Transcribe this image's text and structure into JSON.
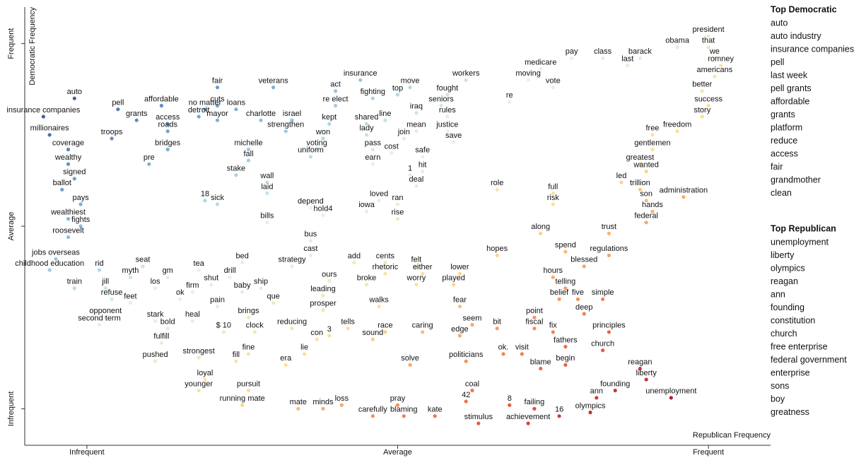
{
  "chart_data": {
    "type": "scatter",
    "xlabel": "Republican Frequency",
    "ylabel": "Democratic Frequency",
    "xlim": [
      -0.1,
      1.1
    ],
    "ylim": [
      -0.1,
      1.1
    ],
    "xticks": [
      {
        "value": 0,
        "label": "Infrequent"
      },
      {
        "value": 0.5,
        "label": "Average"
      },
      {
        "value": 1,
        "label": "Frequent"
      }
    ],
    "yticks": [
      {
        "value": 0,
        "label": "Infrequent"
      },
      {
        "value": 0.5,
        "label": "Average"
      },
      {
        "value": 1,
        "label": "Frequent"
      }
    ],
    "color_scale": [
      "#a50026",
      "#f46d43",
      "#fee090",
      "#e0f3f8",
      "#74add1",
      "#313695"
    ],
    "labels": [
      "auto",
      "insurance companies",
      "pell",
      "grants",
      "access",
      "affordable",
      "fair",
      "cuts",
      "veterans",
      "charlotte",
      "israel",
      "no matter",
      "detroit",
      "loans",
      "mayor",
      "roads",
      "millionaires",
      "troops",
      "coverage",
      "bridges",
      "pre",
      "wealthy",
      "michelle",
      "strengthen",
      "fall",
      "stake",
      "wall",
      "laid",
      "signed",
      "ballot",
      "pays",
      "wealthiest",
      "fights",
      "roosevelt",
      "18",
      "sick",
      "bills",
      "act",
      "insurance",
      "re elect",
      "fighting",
      "top",
      "move",
      "workers",
      "seniors",
      "fought",
      "kept",
      "won",
      "shared",
      "lady",
      "line",
      "iraq",
      "rules",
      "mean",
      "join",
      "justice",
      "save",
      "voting",
      "uniform",
      "pass",
      "earn",
      "cost",
      "safe",
      "1",
      "hit",
      "deal",
      "depend",
      "hold4",
      "loved",
      "iowa",
      "ran",
      "rise",
      "role",
      "moving",
      "re",
      "medicare",
      "vote",
      "pay",
      "class",
      "barack",
      "last",
      "obama",
      "president",
      "that",
      "we",
      "romney",
      "americans",
      "better",
      "success",
      "story",
      "freedom",
      "free",
      "gentlemen",
      "greatest",
      "wanted",
      "led",
      "trillion",
      "son",
      "administration",
      "hands",
      "federal",
      "full",
      "risk",
      "trust",
      "along",
      "spend",
      "regulations",
      "blessed",
      "hopes",
      "jobs overseas",
      "childhood education",
      "rid",
      "seat",
      "myth",
      "gm",
      "tea",
      "bed",
      "drill",
      "strategy",
      "cast",
      "bus",
      "add",
      "cents",
      "felt",
      "either",
      "lower",
      "rhetoric",
      "ours",
      "worry",
      "played",
      "broke",
      "hours",
      "telling",
      "train",
      "jill",
      "refuse",
      "los",
      "shut",
      "ship",
      "baby",
      "leading",
      "ok",
      "firm",
      "feet",
      "que",
      "belief",
      "five",
      "simple",
      "pain",
      "walks",
      "prosper",
      "fear",
      "point",
      "deep",
      "opponent",
      "second term",
      "stark",
      "brings",
      "bold",
      "heal",
      "reducing",
      "seem",
      "fiscal",
      "principles",
      "clock",
      "$ 10",
      "tells",
      "race",
      "caring",
      "edge",
      "bit",
      "fix",
      "con",
      "3",
      "fulfill",
      "sound",
      "ok.",
      "visit",
      "fathers",
      "church",
      "pushed",
      "strongest",
      "fine",
      "lie",
      "fill",
      "era",
      "solve",
      "politicians",
      "blame",
      "begin",
      "reagan",
      "liberty",
      "loyal",
      "younger",
      "pursuit",
      "founding",
      "unemployment",
      "running mate",
      "mate",
      "minds",
      "loss",
      "coal",
      "42",
      "8",
      "ann",
      "pray",
      "failing",
      "olympics",
      "16",
      "carefully",
      "blaming",
      "kate",
      "achievement",
      "stimulus"
    ],
    "x": [
      -0.02,
      -0.07,
      0.05,
      0.08,
      0.13,
      0.12,
      0.21,
      0.21,
      0.3,
      0.28,
      0.33,
      0.19,
      0.18,
      0.24,
      0.21,
      0.13,
      -0.06,
      0.04,
      -0.03,
      0.13,
      0.1,
      -0.03,
      0.26,
      0.32,
      0.26,
      0.24,
      0.29,
      0.29,
      -0.02,
      -0.04,
      -0.01,
      -0.03,
      -0.01,
      -0.03,
      0.19,
      0.21,
      0.29,
      0.4,
      0.44,
      0.4,
      0.46,
      0.5,
      0.52,
      0.61,
      0.57,
      0.58,
      0.39,
      0.38,
      0.45,
      0.45,
      0.48,
      0.53,
      0.58,
      0.53,
      0.51,
      0.58,
      0.59,
      0.37,
      0.36,
      0.46,
      0.46,
      0.49,
      0.54,
      0.52,
      0.54,
      0.53,
      0.36,
      0.38,
      0.47,
      0.45,
      0.5,
      0.5,
      0.66,
      0.71,
      0.68,
      0.73,
      0.75,
      0.78,
      0.83,
      0.89,
      0.87,
      0.95,
      1.0,
      1.0,
      1.01,
      1.02,
      1.01,
      0.99,
      1.0,
      0.99,
      0.95,
      0.91,
      0.91,
      0.89,
      0.9,
      0.86,
      0.89,
      0.9,
      0.96,
      0.91,
      0.9,
      0.75,
      0.75,
      0.84,
      0.73,
      0.77,
      0.84,
      0.8,
      0.66,
      -0.05,
      -0.06,
      0.02,
      0.09,
      0.07,
      0.13,
      0.18,
      0.25,
      0.23,
      0.33,
      0.36,
      0.36,
      0.43,
      0.48,
      0.53,
      0.54,
      0.6,
      0.48,
      0.39,
      0.53,
      0.59,
      0.45,
      0.75,
      0.77,
      -0.02,
      0.03,
      0.04,
      0.11,
      0.2,
      0.28,
      0.25,
      0.38,
      0.15,
      0.17,
      0.07,
      0.3,
      0.76,
      0.79,
      0.83,
      0.21,
      0.47,
      0.38,
      0.6,
      0.72,
      0.8,
      0.03,
      0.02,
      0.11,
      0.26,
      0.13,
      0.17,
      0.33,
      0.62,
      0.72,
      0.84,
      0.27,
      0.22,
      0.42,
      0.48,
      0.54,
      0.6,
      0.66,
      0.75,
      0.37,
      0.39,
      0.12,
      0.46,
      0.67,
      0.7,
      0.77,
      0.83,
      0.11,
      0.18,
      0.26,
      0.35,
      0.24,
      0.32,
      0.52,
      0.61,
      0.73,
      0.77,
      0.89,
      0.9,
      0.19,
      0.18,
      0.26,
      0.85,
      0.94,
      0.25,
      0.34,
      0.38,
      0.41,
      0.62,
      0.61,
      0.68,
      0.82,
      0.5,
      0.72,
      0.81,
      0.76,
      0.46,
      0.51,
      0.56,
      0.71,
      0.63
    ],
    "y": [
      0.85,
      0.8,
      0.82,
      0.79,
      0.78,
      0.83,
      0.88,
      0.83,
      0.88,
      0.79,
      0.79,
      0.82,
      0.8,
      0.82,
      0.79,
      0.76,
      0.75,
      0.74,
      0.71,
      0.71,
      0.67,
      0.67,
      0.71,
      0.76,
      0.68,
      0.64,
      0.62,
      0.59,
      0.63,
      0.6,
      0.56,
      0.52,
      0.5,
      0.47,
      0.57,
      0.56,
      0.51,
      0.87,
      0.9,
      0.83,
      0.85,
      0.86,
      0.88,
      0.9,
      0.83,
      0.86,
      0.78,
      0.74,
      0.78,
      0.75,
      0.79,
      0.81,
      0.8,
      0.76,
      0.74,
      0.76,
      0.73,
      0.71,
      0.69,
      0.71,
      0.67,
      0.7,
      0.69,
      0.64,
      0.65,
      0.61,
      0.55,
      0.53,
      0.57,
      0.54,
      0.56,
      0.52,
      0.6,
      0.9,
      0.84,
      0.93,
      0.88,
      0.96,
      0.96,
      0.96,
      0.94,
      0.99,
      1.02,
      0.99,
      0.96,
      0.94,
      0.91,
      0.87,
      0.83,
      0.8,
      0.76,
      0.75,
      0.71,
      0.67,
      0.65,
      0.62,
      0.6,
      0.57,
      0.58,
      0.54,
      0.51,
      0.59,
      0.56,
      0.48,
      0.48,
      0.43,
      0.42,
      0.39,
      0.42,
      0.41,
      0.38,
      0.38,
      0.39,
      0.36,
      0.36,
      0.38,
      0.4,
      0.36,
      0.39,
      0.42,
      0.46,
      0.4,
      0.4,
      0.39,
      0.37,
      0.37,
      0.37,
      0.35,
      0.34,
      0.34,
      0.34,
      0.36,
      0.33,
      0.33,
      0.33,
      0.3,
      0.33,
      0.34,
      0.33,
      0.32,
      0.31,
      0.3,
      0.32,
      0.29,
      0.29,
      0.3,
      0.3,
      0.3,
      0.28,
      0.28,
      0.27,
      0.28,
      0.25,
      0.26,
      0.25,
      0.23,
      0.24,
      0.25,
      0.22,
      0.24,
      0.22,
      0.23,
      0.22,
      0.21,
      0.21,
      0.21,
      0.22,
      0.21,
      0.21,
      0.2,
      0.22,
      0.21,
      0.19,
      0.2,
      0.18,
      0.19,
      0.15,
      0.15,
      0.17,
      0.16,
      0.13,
      0.14,
      0.15,
      0.15,
      0.13,
      0.12,
      0.12,
      0.13,
      0.11,
      0.12,
      0.11,
      0.08,
      0.08,
      0.05,
      0.05,
      0.05,
      0.03,
      0.01,
      0.0,
      0.0,
      0.01,
      0.05,
      0.02,
      0.01,
      0.03,
      0.01,
      0.0,
      -0.01,
      -0.02,
      -0.02,
      -0.02,
      -0.02,
      -0.04,
      -0.04
    ]
  },
  "top_democratic": {
    "title": "Top Democratic",
    "terms": [
      "auto",
      "auto industry",
      "insurance companies",
      "pell",
      "last week",
      "pell grants",
      "affordable",
      "grants",
      "platform",
      "reduce",
      "access",
      "fair",
      "grandmother",
      "clean"
    ]
  },
  "top_republican": {
    "title": "Top Republican",
    "terms": [
      "unemployment",
      "liberty",
      "olympics",
      "reagan",
      "ann",
      "founding",
      "constitution",
      "church",
      "free enterprise",
      "federal government",
      "enterprise",
      "sons",
      "boy",
      "greatness"
    ]
  }
}
